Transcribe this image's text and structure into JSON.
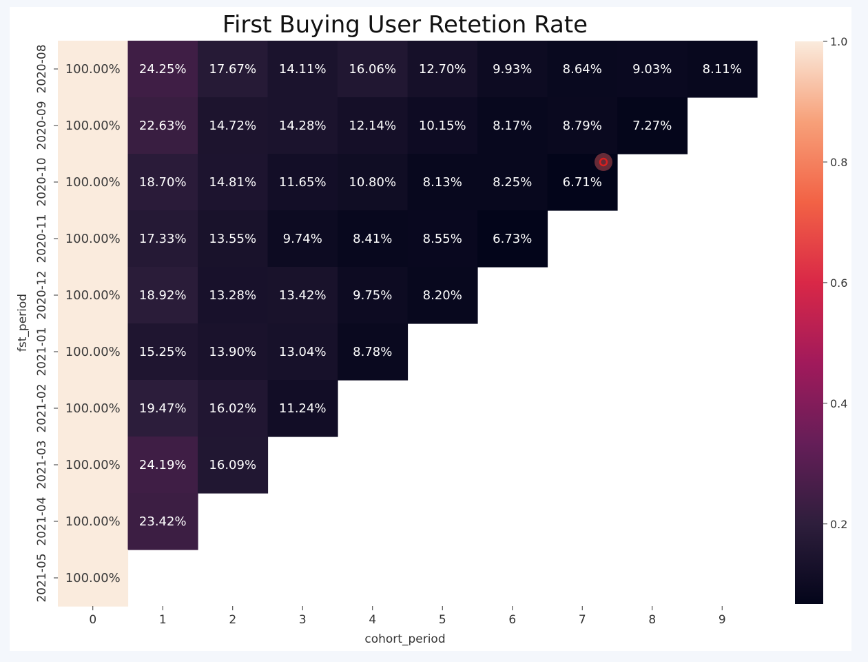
{
  "chart_data": {
    "type": "heatmap",
    "title": "First Buying User Retetion Rate",
    "xlabel": "cohort_period",
    "ylabel": "fst_period",
    "x_categories": [
      "0",
      "1",
      "2",
      "3",
      "4",
      "5",
      "6",
      "7",
      "8",
      "9"
    ],
    "y_categories": [
      "2020-08",
      "2020-09",
      "2020-10",
      "2020-11",
      "2020-12",
      "2021-01",
      "2021-02",
      "2021-03",
      "2021-04",
      "2021-05"
    ],
    "values": [
      [
        1.0,
        0.2425,
        0.1767,
        0.1411,
        0.1606,
        0.127,
        0.0993,
        0.0864,
        0.0903,
        0.0811
      ],
      [
        1.0,
        0.2263,
        0.1472,
        0.1428,
        0.1214,
        0.1015,
        0.0817,
        0.0879,
        0.0727,
        null
      ],
      [
        1.0,
        0.187,
        0.1481,
        0.1165,
        0.108,
        0.0813,
        0.0825,
        0.0671,
        null,
        null
      ],
      [
        1.0,
        0.1733,
        0.1355,
        0.0974,
        0.0841,
        0.0855,
        0.0673,
        null,
        null,
        null
      ],
      [
        1.0,
        0.1892,
        0.1328,
        0.1342,
        0.0975,
        0.082,
        null,
        null,
        null,
        null
      ],
      [
        1.0,
        0.1525,
        0.139,
        0.1304,
        0.0878,
        null,
        null,
        null,
        null,
        null
      ],
      [
        1.0,
        0.1947,
        0.1602,
        0.1124,
        null,
        null,
        null,
        null,
        null,
        null
      ],
      [
        1.0,
        0.2419,
        0.1609,
        null,
        null,
        null,
        null,
        null,
        null,
        null
      ],
      [
        1.0,
        0.2342,
        null,
        null,
        null,
        null,
        null,
        null,
        null,
        null
      ],
      [
        1.0,
        null,
        null,
        null,
        null,
        null,
        null,
        null,
        null,
        null
      ]
    ],
    "labels": [
      [
        "100.00%",
        "24.25%",
        "17.67%",
        "14.11%",
        "16.06%",
        "12.70%",
        "9.93%",
        "8.64%",
        "9.03%",
        "8.11%"
      ],
      [
        "100.00%",
        "22.63%",
        "14.72%",
        "14.28%",
        "12.14%",
        "10.15%",
        "8.17%",
        "8.79%",
        "7.27%",
        null
      ],
      [
        "100.00%",
        "18.70%",
        "14.81%",
        "11.65%",
        "10.80%",
        "8.13%",
        "8.25%",
        "6.71%",
        null,
        null
      ],
      [
        "100.00%",
        "17.33%",
        "13.55%",
        "9.74%",
        "8.41%",
        "8.55%",
        "6.73%",
        null,
        null,
        null
      ],
      [
        "100.00%",
        "18.92%",
        "13.28%",
        "13.42%",
        "9.75%",
        "8.20%",
        null,
        null,
        null,
        null
      ],
      [
        "100.00%",
        "15.25%",
        "13.90%",
        "13.04%",
        "8.78%",
        null,
        null,
        null,
        null,
        null
      ],
      [
        "100.00%",
        "19.47%",
        "16.02%",
        "11.24%",
        null,
        null,
        null,
        null,
        null,
        null
      ],
      [
        "100.00%",
        "24.19%",
        "16.09%",
        null,
        null,
        null,
        null,
        null,
        null,
        null
      ],
      [
        "100.00%",
        "23.42%",
        null,
        null,
        null,
        null,
        null,
        null,
        null,
        null
      ],
      [
        "100.00%",
        null,
        null,
        null,
        null,
        null,
        null,
        null,
        null,
        null
      ]
    ],
    "colorbar": {
      "min": 0.0671,
      "max": 1.0,
      "ticks": [
        0.2,
        0.4,
        0.6,
        0.8,
        1.0
      ],
      "tick_labels": [
        "0.2",
        "0.4",
        "0.6",
        "0.8",
        "1.0"
      ],
      "colormap": "rocket"
    },
    "colormap_stops": [
      "#03051a",
      "#2e1e3c",
      "#651e58",
      "#a11a5b",
      "#d92847",
      "#f26245",
      "#f7a079",
      "#faebdd"
    ]
  }
}
